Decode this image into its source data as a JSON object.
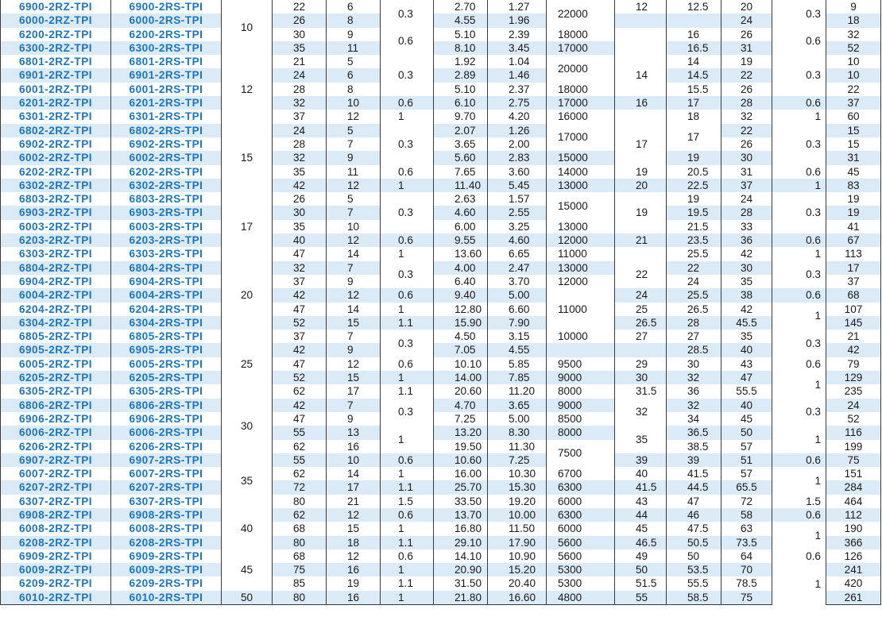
{
  "colors": {
    "model_text": "#1976c5",
    "row_shade": "#dbeaf7",
    "border": "#3a3a3a"
  },
  "rows": [
    [
      "6900-2RZ-TPI",
      "6900-2RS-TPI",
      "10",
      "22",
      "6",
      "0.3",
      "2.70",
      "1.27",
      "22000",
      "12",
      "12.5",
      "20",
      "0.3",
      "9"
    ],
    [
      "6000-2RZ-TPI",
      "6000-2RS-TPI",
      "",
      "26",
      "8",
      "",
      "4.55",
      "1.96",
      "",
      "",
      "",
      "24",
      "",
      "18"
    ],
    [
      "6200-2RZ-TPI",
      "6200-2RS-TPI",
      "",
      "30",
      "9",
      "0.6",
      "5.10",
      "2.39",
      "18000",
      "",
      "16",
      "26",
      "0.6",
      "32"
    ],
    [
      "6300-2RZ-TPI",
      "6300-2RS-TPI",
      "",
      "35",
      "11",
      "",
      "8.10",
      "3.45",
      "17000",
      "",
      "16.5",
      "31",
      "",
      "52"
    ],
    [
      "6801-2RZ-TPI",
      "6801-2RS-TPI",
      "12",
      "21",
      "5",
      "0.3",
      "1.92",
      "1.04",
      "20000",
      "14",
      "14",
      "19",
      "0.3",
      "10"
    ],
    [
      "6901-2RZ-TPI",
      "6901-2RS-TPI",
      "",
      "24",
      "6",
      "",
      "2.89",
      "1.46",
      "",
      "",
      "14.5",
      "22",
      "",
      "10"
    ],
    [
      "6001-2RZ-TPI",
      "6001-2RS-TPI",
      "",
      "28",
      "8",
      "",
      "5.10",
      "2.37",
      "18000",
      "",
      "15.5",
      "26",
      "",
      "22"
    ],
    [
      "6201-2RZ-TPI",
      "6201-2RS-TPI",
      "",
      "32",
      "10",
      "0.6",
      "6.10",
      "2.75",
      "17000",
      "16",
      "17",
      "28",
      "0.6",
      "37"
    ],
    [
      "6301-2RZ-TPI",
      "6301-2RS-TPI",
      "",
      "37",
      "12",
      "1",
      "9.70",
      "4.20",
      "16000",
      "",
      "18",
      "32",
      "1",
      "60"
    ],
    [
      "6802-2RZ-TPI",
      "6802-2RS-TPI",
      "15",
      "24",
      "5",
      "0.3",
      "2.07",
      "1.26",
      "17000",
      "17",
      "17",
      "22",
      "0.3",
      "15"
    ],
    [
      "6902-2RZ-TPI",
      "6902-2RS-TPI",
      "",
      "28",
      "7",
      "",
      "3.65",
      "2.00",
      "",
      "",
      "",
      "26",
      "",
      "15"
    ],
    [
      "6002-2RZ-TPI",
      "6002-2RS-TPI",
      "",
      "32",
      "9",
      "",
      "5.60",
      "2.83",
      "15000",
      "",
      "19",
      "30",
      "",
      "31"
    ],
    [
      "6202-2RZ-TPI",
      "6202-2RS-TPI",
      "",
      "35",
      "11",
      "0.6",
      "7.65",
      "3.60",
      "14000",
      "19",
      "20.5",
      "31",
      "0.6",
      "45"
    ],
    [
      "6302-2RZ-TPI",
      "6302-2RS-TPI",
      "",
      "42",
      "12",
      "1",
      "11.40",
      "5.45",
      "13000",
      "20",
      "22.5",
      "37",
      "1",
      "83"
    ],
    [
      "6803-2RZ-TPI",
      "6803-2RS-TPI",
      "17",
      "26",
      "5",
      "0.3",
      "2.63",
      "1.57",
      "15000",
      "19",
      "19",
      "24",
      "0.3",
      "19"
    ],
    [
      "6903-2RZ-TPI",
      "6903-2RS-TPI",
      "",
      "30",
      "7",
      "",
      "4.60",
      "2.55",
      "",
      "",
      "19.5",
      "28",
      "",
      "19"
    ],
    [
      "6003-2RZ-TPI",
      "6003-2RS-TPI",
      "",
      "35",
      "10",
      "",
      "6.00",
      "3.25",
      "13000",
      "",
      "21.5",
      "33",
      "",
      "41"
    ],
    [
      "6203-2RZ-TPI",
      "6203-2RS-TPI",
      "",
      "40",
      "12",
      "0.6",
      "9.55",
      "4.60",
      "12000",
      "21",
      "23.5",
      "36",
      "0.6",
      "67"
    ],
    [
      "6303-2RZ-TPI",
      "6303-2RS-TPI",
      "",
      "47",
      "14",
      "1",
      "13.60",
      "6.65",
      "11000",
      "",
      "25.5",
      "42",
      "1",
      "113"
    ],
    [
      "6804-2RZ-TPI",
      "6804-2RS-TPI",
      "20",
      "32",
      "7",
      "0.3",
      "4.00",
      "2.47",
      "13000",
      "22",
      "22",
      "30",
      "0.3",
      "17"
    ],
    [
      "6904-2RZ-TPI",
      "6904-2RS-TPI",
      "",
      "37",
      "9",
      "",
      "6.40",
      "3.70",
      "12000",
      "",
      "24",
      "35",
      "",
      "37"
    ],
    [
      "6004-2RZ-TPI",
      "6004-2RS-TPI",
      "",
      "42",
      "12",
      "0.6",
      "9.40",
      "5.00",
      "11000",
      "24",
      "25.5",
      "38",
      "0.6",
      "68"
    ],
    [
      "6204-2RZ-TPI",
      "6204-2RS-TPI",
      "",
      "47",
      "14",
      "1",
      "12.80",
      "6.60",
      "",
      "25",
      "26.5",
      "42",
      "1",
      "107"
    ],
    [
      "6304-2RZ-TPI",
      "6304-2RS-TPI",
      "",
      "52",
      "15",
      "1.1",
      "15.90",
      "7.90",
      "",
      "26.5",
      "28",
      "45.5",
      "",
      "145"
    ],
    [
      "6805-2RZ-TPI",
      "6805-2RS-TPI",
      "25",
      "37",
      "7",
      "0.3",
      "4.50",
      "3.15",
      "10000",
      "27",
      "27",
      "35",
      "0.3",
      "21"
    ],
    [
      "6905-2RZ-TPI",
      "6905-2RS-TPI",
      "",
      "42",
      "9",
      "",
      "7.05",
      "4.55",
      "",
      "",
      "28.5",
      "40",
      "",
      "42"
    ],
    [
      "6005-2RZ-TPI",
      "6005-2RS-TPI",
      "",
      "47",
      "12",
      "0.6",
      "10.10",
      "5.85",
      "9500",
      "29",
      "30",
      "43",
      "0.6",
      "79"
    ],
    [
      "6205-2RZ-TPI",
      "6205-2RS-TPI",
      "",
      "52",
      "15",
      "1",
      "14.00",
      "7.85",
      "9000",
      "30",
      "32",
      "47",
      "1",
      "129"
    ],
    [
      "6305-2RZ-TPI",
      "6305-2RS-TPI",
      "",
      "62",
      "17",
      "1.1",
      "20.60",
      "11.20",
      "8000",
      "31.5",
      "36",
      "55.5",
      "",
      "235"
    ],
    [
      "6806-2RZ-TPI",
      "6806-2RS-TPI",
      "30",
      "42",
      "7",
      "0.3",
      "4.70",
      "3.65",
      "9000",
      "32",
      "32",
      "40",
      "0.3",
      "24"
    ],
    [
      "6906-2RZ-TPI",
      "6906-2RS-TPI",
      "",
      "47",
      "9",
      "",
      "7.25",
      "5.00",
      "8500",
      "",
      "34",
      "45",
      "",
      "52"
    ],
    [
      "6006-2RZ-TPI",
      "6006-2RS-TPI",
      "",
      "55",
      "13",
      "1",
      "13.20",
      "8.30",
      "8000",
      "35",
      "36.5",
      "50",
      "1",
      "116"
    ],
    [
      "6206-2RZ-TPI",
      "6206-2RS-TPI",
      "",
      "62",
      "16",
      "",
      "19.50",
      "11.30",
      "7500",
      "",
      "38.5",
      "57",
      "",
      "199"
    ],
    [
      "6907-2RZ-TPI",
      "6907-2RS-TPI",
      "35",
      "55",
      "10",
      "0.6",
      "10.60",
      "7.25",
      "",
      "39",
      "39",
      "51",
      "0.6",
      "75"
    ],
    [
      "6007-2RZ-TPI",
      "6007-2RS-TPI",
      "",
      "62",
      "14",
      "1",
      "16.00",
      "10.30",
      "6700",
      "40",
      "41.5",
      "57",
      "1",
      "151"
    ],
    [
      "6207-2RZ-TPI",
      "6207-2RS-TPI",
      "",
      "72",
      "17",
      "1.1",
      "25.70",
      "15.30",
      "6300",
      "41.5",
      "44.5",
      "65.5",
      "",
      "284"
    ],
    [
      "6307-2RZ-TPI",
      "6307-2RS-TPI",
      "",
      "80",
      "21",
      "1.5",
      "33.50",
      "19.20",
      "6000",
      "43",
      "47",
      "72",
      "1.5",
      "464"
    ],
    [
      "6908-2RZ-TPI",
      "6908-2RS-TPI",
      "40",
      "62",
      "12",
      "0.6",
      "13.70",
      "10.00",
      "6300",
      "44",
      "46",
      "58",
      "0.6",
      "112"
    ],
    [
      "6008-2RZ-TPI",
      "6008-2RS-TPI",
      "",
      "68",
      "15",
      "1",
      "16.80",
      "11.50",
      "6000",
      "45",
      "47.5",
      "63",
      "1",
      "190"
    ],
    [
      "6208-2RZ-TPI",
      "6208-2RS-TPI",
      "",
      "80",
      "18",
      "1.1",
      "29.10",
      "17.90",
      "5600",
      "46.5",
      "50.5",
      "73.5",
      "",
      "366"
    ],
    [
      "6909-2RZ-TPI",
      "6909-2RS-TPI",
      "45",
      "68",
      "12",
      "0.6",
      "14.10",
      "10.90",
      "5600",
      "49",
      "50",
      "64",
      "0.6",
      "126"
    ],
    [
      "6009-2RZ-TPI",
      "6009-2RS-TPI",
      "",
      "75",
      "16",
      "1",
      "20.90",
      "15.20",
      "5300",
      "50",
      "53.5",
      "70",
      "1",
      "241"
    ],
    [
      "6209-2RZ-TPI",
      "6209-2RS-TPI",
      "",
      "85",
      "19",
      "1.1",
      "31.50",
      "20.40",
      "5300",
      "51.5",
      "55.5",
      "78.5",
      "",
      "420"
    ],
    [
      "6010-2RZ-TPI",
      "6010-2RS-TPI",
      "50",
      "80",
      "16",
      "1",
      "21.80",
      "16.60",
      "4800",
      "55",
      "58.5",
      "75",
      "",
      "261"
    ]
  ]
}
